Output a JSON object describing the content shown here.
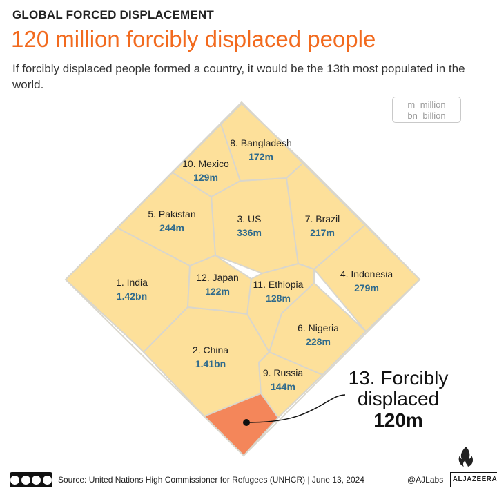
{
  "header": {
    "kicker": "GLOBAL FORCED DISPLACEMENT",
    "title": "120 million forcibly displaced people",
    "subtitle": "If forcibly displaced people formed a country, it would be the 13th most populated in the world."
  },
  "units_note": {
    "line1": "m=million",
    "line2": "bn=billion"
  },
  "colors": {
    "cell_fill": "#fde09a",
    "highlight_fill": "#f4865a",
    "border": "#d9d6cc",
    "value_text": "#2f6a8c",
    "title_accent": "#f26a1e"
  },
  "chart_data": {
    "type": "voronoi-treemap",
    "title": "120 million forcibly displaced people",
    "unit": "people",
    "cells": [
      {
        "rank": 1,
        "label": "1. India",
        "value_text": "1.42bn",
        "value": 1420000000
      },
      {
        "rank": 2,
        "label": "2. China",
        "value_text": "1.41bn",
        "value": 1410000000
      },
      {
        "rank": 3,
        "label": "3. US",
        "value_text": "336m",
        "value": 336000000
      },
      {
        "rank": 4,
        "label": "4. Indonesia",
        "value_text": "279m",
        "value": 279000000
      },
      {
        "rank": 5,
        "label": "5. Pakistan",
        "value_text": "244m",
        "value": 244000000
      },
      {
        "rank": 6,
        "label": "6. Nigeria",
        "value_text": "228m",
        "value": 228000000
      },
      {
        "rank": 7,
        "label": "7. Brazil",
        "value_text": "217m",
        "value": 217000000
      },
      {
        "rank": 8,
        "label": "8. Bangladesh",
        "value_text": "172m",
        "value": 172000000
      },
      {
        "rank": 9,
        "label": "9. Russia",
        "value_text": "144m",
        "value": 144000000
      },
      {
        "rank": 10,
        "label": "10. Mexico",
        "value_text": "129m",
        "value": 129000000
      },
      {
        "rank": 11,
        "label": "11. Ethiopia",
        "value_text": "128m",
        "value": 128000000
      },
      {
        "rank": 12,
        "label": "12. Japan",
        "value_text": "122m",
        "value": 122000000
      }
    ],
    "highlight": {
      "rank": 13,
      "line1": "13. Forcibly",
      "line2": "displaced",
      "value_text": "120m",
      "value": 120000000
    }
  },
  "footer": {
    "license_label": "cc by nc sa",
    "source": "Source: United Nations High Commissioner for Refugees (UNHCR) | June 13, 2024",
    "handle": "@AJLabs",
    "brand": "ALJAZEERA"
  }
}
